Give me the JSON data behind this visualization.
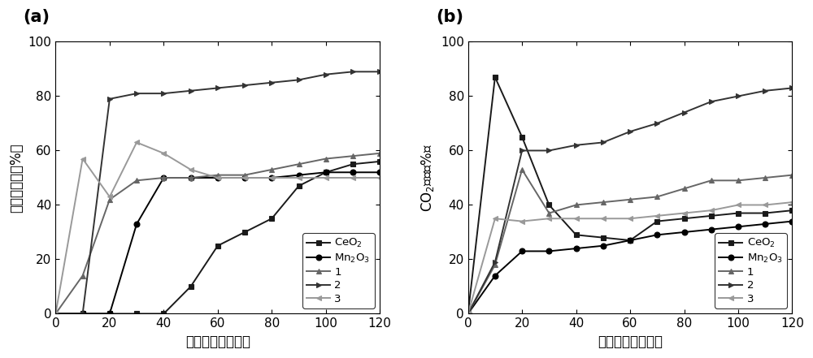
{
  "panel_a": {
    "title": "(a)",
    "xlabel": "光照时间（分钟）",
    "ylabel": "甲苯降解率（%）",
    "xlim": [
      0,
      120
    ],
    "ylim": [
      0,
      100
    ],
    "xticks": [
      0,
      20,
      40,
      60,
      80,
      100,
      120
    ],
    "yticks": [
      0,
      20,
      40,
      60,
      80,
      100
    ],
    "series": {
      "CeO2": {
        "x": [
          0,
          10,
          20,
          30,
          40,
          50,
          60,
          70,
          80,
          90,
          100,
          110,
          120
        ],
        "y": [
          0,
          0,
          0,
          0,
          0,
          10,
          25,
          30,
          35,
          47,
          52,
          55,
          56
        ],
        "marker": "s",
        "color": "#1a1a1a",
        "linestyle": "-",
        "label": "CeO$_2$"
      },
      "Mn2O3": {
        "x": [
          0,
          10,
          20,
          30,
          40,
          50,
          60,
          70,
          80,
          90,
          100,
          110,
          120
        ],
        "y": [
          0,
          0,
          0,
          33,
          50,
          50,
          50,
          50,
          50,
          51,
          52,
          52,
          52
        ],
        "marker": "o",
        "color": "#000000",
        "linestyle": "-",
        "label": "Mn$_2$O$_3$"
      },
      "1": {
        "x": [
          0,
          10,
          20,
          30,
          40,
          50,
          60,
          70,
          80,
          90,
          100,
          110,
          120
        ],
        "y": [
          0,
          14,
          42,
          49,
          50,
          50,
          51,
          51,
          53,
          55,
          57,
          58,
          59
        ],
        "marker": "^",
        "color": "#666666",
        "linestyle": "-",
        "label": "1"
      },
      "2": {
        "x": [
          0,
          10,
          20,
          30,
          40,
          50,
          60,
          70,
          80,
          90,
          100,
          110,
          120
        ],
        "y": [
          0,
          0,
          79,
          81,
          81,
          82,
          83,
          84,
          85,
          86,
          88,
          89,
          89
        ],
        "marker": ">",
        "color": "#333333",
        "linestyle": "-",
        "label": "2"
      },
      "3": {
        "x": [
          0,
          10,
          20,
          30,
          40,
          50,
          60,
          70,
          80,
          90,
          100,
          110,
          120
        ],
        "y": [
          0,
          57,
          43,
          63,
          59,
          53,
          50,
          50,
          50,
          50,
          50,
          50,
          50
        ],
        "marker": "<",
        "color": "#999999",
        "linestyle": "-",
        "label": "3"
      }
    }
  },
  "panel_b": {
    "title": "(b)",
    "xlabel": "光照时间（分钟）",
    "ylabel": "CO$_2$产率（%）",
    "xlim": [
      0,
      120
    ],
    "ylim": [
      0,
      100
    ],
    "xticks": [
      0,
      20,
      40,
      60,
      80,
      100,
      120
    ],
    "yticks": [
      0,
      20,
      40,
      60,
      80,
      100
    ],
    "series": {
      "CeO2": {
        "x": [
          0,
          10,
          20,
          30,
          40,
          50,
          60,
          70,
          80,
          90,
          100,
          110,
          120
        ],
        "y": [
          0,
          87,
          65,
          40,
          29,
          28,
          27,
          34,
          35,
          36,
          37,
          37,
          38
        ],
        "marker": "s",
        "color": "#1a1a1a",
        "linestyle": "-",
        "label": "CeO$_2$"
      },
      "Mn2O3": {
        "x": [
          0,
          10,
          20,
          30,
          40,
          50,
          60,
          70,
          80,
          90,
          100,
          110,
          120
        ],
        "y": [
          0,
          14,
          23,
          23,
          24,
          25,
          27,
          29,
          30,
          31,
          32,
          33,
          34
        ],
        "marker": "o",
        "color": "#000000",
        "linestyle": "-",
        "label": "Mn$_2$O$_3$"
      },
      "1": {
        "x": [
          0,
          10,
          20,
          30,
          40,
          50,
          60,
          70,
          80,
          90,
          100,
          110,
          120
        ],
        "y": [
          0,
          18,
          53,
          37,
          40,
          41,
          42,
          43,
          46,
          49,
          49,
          50,
          51
        ],
        "marker": "^",
        "color": "#666666",
        "linestyle": "-",
        "label": "1"
      },
      "2": {
        "x": [
          0,
          10,
          20,
          30,
          40,
          50,
          60,
          70,
          80,
          90,
          100,
          110,
          120
        ],
        "y": [
          0,
          19,
          60,
          60,
          62,
          63,
          67,
          70,
          74,
          78,
          80,
          82,
          83
        ],
        "marker": ">",
        "color": "#333333",
        "linestyle": "-",
        "label": "2"
      },
      "3": {
        "x": [
          0,
          10,
          20,
          30,
          40,
          50,
          60,
          70,
          80,
          90,
          100,
          110,
          120
        ],
        "y": [
          0,
          35,
          34,
          35,
          35,
          35,
          35,
          36,
          37,
          38,
          40,
          40,
          41
        ],
        "marker": "<",
        "color": "#999999",
        "linestyle": "-",
        "label": "3"
      }
    }
  },
  "font_size": 11,
  "label_font_size": 12,
  "title_font_size": 15,
  "marker_size": 5,
  "linewidth": 1.4
}
